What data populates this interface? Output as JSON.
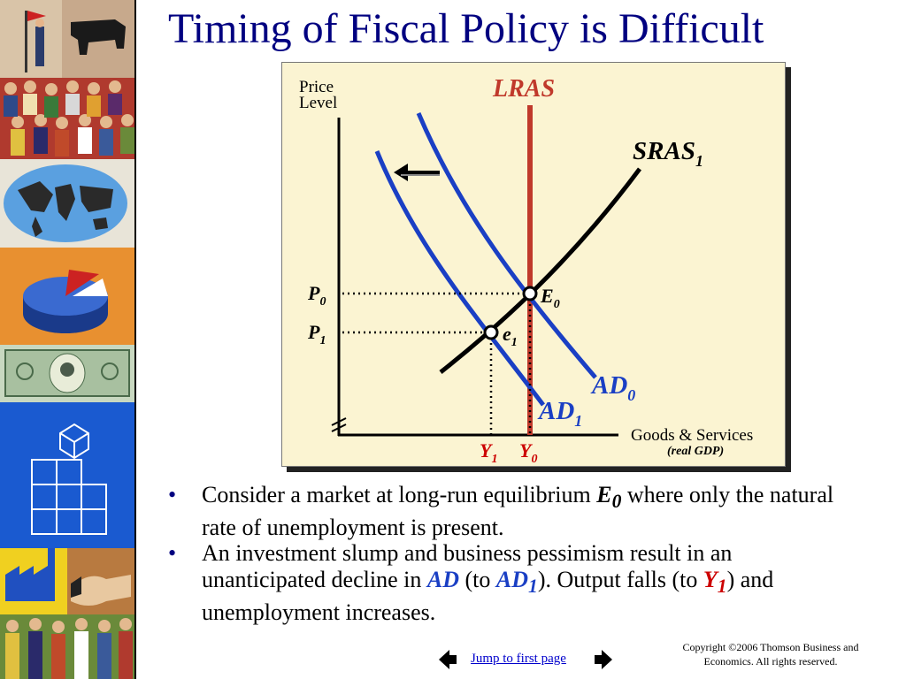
{
  "slide": {
    "title": "Timing of Fiscal Policy is Difficult"
  },
  "diagram": {
    "y_axis_label_line1": "Price",
    "y_axis_label_line2": "Level",
    "x_axis_label": "Goods & Services",
    "x_axis_sublabel": "(real GDP)",
    "lras_label": "LRAS",
    "sras_label": "SRAS",
    "sras_sub": "1",
    "ad0_label": "AD",
    "ad0_sub": "0",
    "ad1_label": "AD",
    "ad1_sub": "1",
    "p0_label": "P",
    "p0_sub": "0",
    "p1_label": "P",
    "p1_sub": "1",
    "e0_label": "E",
    "e0_sub": "0",
    "e1_label": "e",
    "e1_sub": "1",
    "y0_label": "Y",
    "y0_sub": "0",
    "y1_label": "Y",
    "y1_sub": "1",
    "colors": {
      "ad_curves": "#1a3fc4",
      "lras": "#c0392b",
      "sras": "#000000",
      "y_labels": "#cc0000",
      "panel_bg": "#fbf4d2",
      "title": "#000080"
    }
  },
  "bullets": {
    "b1": {
      "text_a": "Consider a market at long-run equilibrium ",
      "emph": "E",
      "emph_sub": "0",
      "text_b": " where only the natural rate of unemployment is present."
    },
    "b2": {
      "text_a": "An investment slump and business pessimism result in an unanticipated decline in ",
      "ad": "AD",
      "text_b": " (to ",
      "ad1": "AD",
      "ad1_sub": "1",
      "text_c": "). Output falls (to ",
      "y1": "Y",
      "y1_sub": "1",
      "text_d": ") and unemployment increases."
    }
  },
  "footer": {
    "jump_link": "Jump to first page",
    "copyright_line1": "Copyright ©2006  Thomson Business and",
    "copyright_line2": "Economics. All rights reserved."
  },
  "icons": {
    "prev": "left-arrow-icon",
    "next": "right-arrow-icon"
  }
}
